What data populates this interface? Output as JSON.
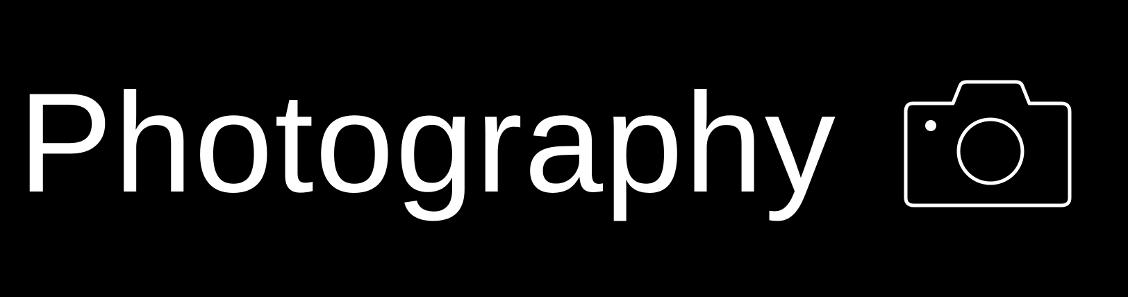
{
  "banner": {
    "title": "Photography",
    "icon": "camera-icon",
    "colors": {
      "background": "#000000",
      "foreground": "#ffffff"
    }
  }
}
